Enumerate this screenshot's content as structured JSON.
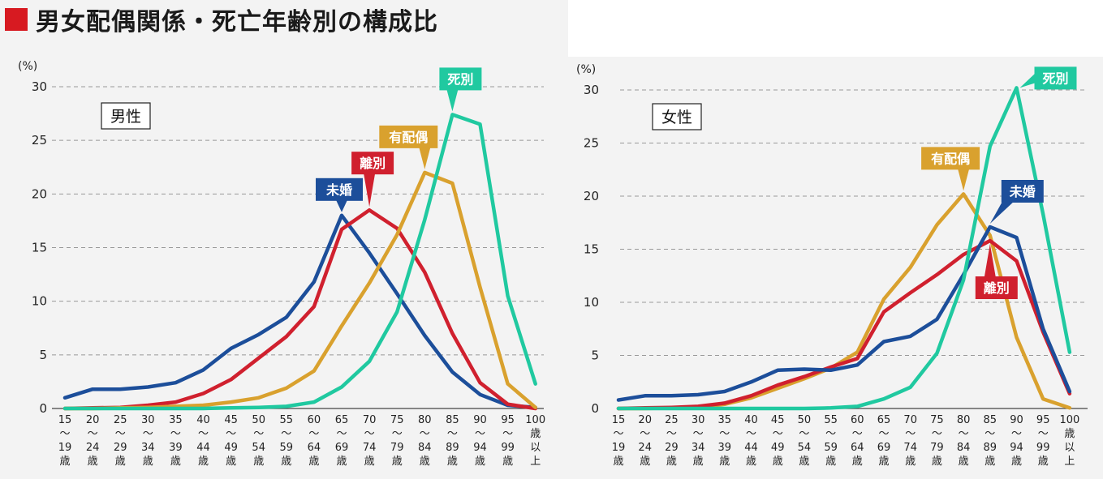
{
  "title": "男女配偶関係・死亡年齢別の構成比",
  "colors": {
    "title_square": "#d71a21",
    "unmarried": "#1c4e9a",
    "divorced": "#d0202e",
    "married": "#d9a12e",
    "widowed": "#20c9a0"
  },
  "chart_data": [
    {
      "type": "line",
      "panel_label": "男性",
      "unit": "(%)",
      "ylim": [
        0,
        30
      ],
      "yticks": [
        "0",
        "5",
        "10",
        "15",
        "20",
        "25",
        "30"
      ],
      "categories": [
        "15〜19歳",
        "20〜24歳",
        "25〜29歳",
        "30〜34歳",
        "35〜39歳",
        "40〜44歳",
        "45〜49歳",
        "50〜54歳",
        "55〜59歳",
        "60〜64歳",
        "65〜69歳",
        "70〜74歳",
        "75〜79歳",
        "80〜84歳",
        "85〜89歳",
        "90〜94歳",
        "95〜99歳",
        "100歳以上"
      ],
      "category_lines": [
        [
          "15",
          "〜",
          "19",
          "歳"
        ],
        [
          "20",
          "〜",
          "24",
          "歳"
        ],
        [
          "25",
          "〜",
          "29",
          "歳"
        ],
        [
          "30",
          "〜",
          "34",
          "歳"
        ],
        [
          "35",
          "〜",
          "39",
          "歳"
        ],
        [
          "40",
          "〜",
          "44",
          "歳"
        ],
        [
          "45",
          "〜",
          "49",
          "歳"
        ],
        [
          "50",
          "〜",
          "54",
          "歳"
        ],
        [
          "55",
          "〜",
          "59",
          "歳"
        ],
        [
          "60",
          "〜",
          "64",
          "歳"
        ],
        [
          "65",
          "〜",
          "69",
          "歳"
        ],
        [
          "70",
          "〜",
          "74",
          "歳"
        ],
        [
          "75",
          "〜",
          "79",
          "歳"
        ],
        [
          "80",
          "〜",
          "84",
          "歳"
        ],
        [
          "85",
          "〜",
          "89",
          "歳"
        ],
        [
          "90",
          "〜",
          "94",
          "歳"
        ],
        [
          "95",
          "〜",
          "99",
          "歳"
        ],
        [
          "100",
          "歳",
          "以",
          "上"
        ]
      ],
      "series": [
        {
          "name": "未婚",
          "key": "unmarried",
          "values": [
            1.0,
            1.8,
            1.8,
            2.0,
            2.4,
            3.6,
            5.6,
            6.9,
            8.5,
            11.8,
            18.0,
            14.5,
            10.7,
            6.8,
            3.4,
            1.3,
            0.3,
            0.1
          ],
          "label_at": 10
        },
        {
          "name": "離別",
          "key": "divorced",
          "values": [
            0.0,
            0.05,
            0.1,
            0.3,
            0.6,
            1.4,
            2.7,
            4.7,
            6.7,
            9.5,
            16.7,
            18.5,
            16.8,
            12.7,
            7.0,
            2.4,
            0.4,
            0.0
          ],
          "label_at": 11
        },
        {
          "name": "有配偶",
          "key": "married",
          "values": [
            0.0,
            0.0,
            0.05,
            0.1,
            0.2,
            0.3,
            0.6,
            1.0,
            1.9,
            3.5,
            7.7,
            11.7,
            16.2,
            22.0,
            21.0,
            11.3,
            2.3,
            0.1
          ],
          "label_at": 13
        },
        {
          "name": "死別",
          "key": "widowed",
          "values": [
            0.0,
            0.0,
            0.0,
            0.0,
            0.0,
            0.0,
            0.05,
            0.1,
            0.2,
            0.6,
            2.0,
            4.4,
            9.0,
            17.6,
            27.4,
            26.5,
            10.5,
            2.3
          ],
          "label_at": 14
        }
      ]
    },
    {
      "type": "line",
      "panel_label": "女性",
      "unit": "(%)",
      "ylim": [
        0,
        30
      ],
      "yticks": [
        "0",
        "5",
        "10",
        "15",
        "20",
        "25",
        "30"
      ],
      "categories": [
        "15〜19歳",
        "20〜24歳",
        "25〜29歳",
        "30〜34歳",
        "35〜39歳",
        "40〜44歳",
        "45〜49歳",
        "50〜54歳",
        "55〜59歳",
        "60〜64歳",
        "65〜69歳",
        "70〜74歳",
        "75〜79歳",
        "80〜84歳",
        "85〜89歳",
        "90〜94歳",
        "95〜99歳",
        "100歳以上"
      ],
      "category_lines": [
        [
          "15",
          "〜",
          "19",
          "歳"
        ],
        [
          "20",
          "〜",
          "24",
          "歳"
        ],
        [
          "25",
          "〜",
          "29",
          "歳"
        ],
        [
          "30",
          "〜",
          "34",
          "歳"
        ],
        [
          "35",
          "〜",
          "39",
          "歳"
        ],
        [
          "40",
          "〜",
          "44",
          "歳"
        ],
        [
          "45",
          "〜",
          "49",
          "歳"
        ],
        [
          "50",
          "〜",
          "54",
          "歳"
        ],
        [
          "55",
          "〜",
          "59",
          "歳"
        ],
        [
          "60",
          "〜",
          "64",
          "歳"
        ],
        [
          "65",
          "〜",
          "69",
          "歳"
        ],
        [
          "70",
          "〜",
          "74",
          "歳"
        ],
        [
          "75",
          "〜",
          "79",
          "歳"
        ],
        [
          "80",
          "〜",
          "84",
          "歳"
        ],
        [
          "85",
          "〜",
          "89",
          "歳"
        ],
        [
          "90",
          "〜",
          "94",
          "歳"
        ],
        [
          "95",
          "〜",
          "99",
          "歳"
        ],
        [
          "100",
          "歳",
          "以",
          "上"
        ]
      ],
      "series": [
        {
          "name": "有配偶",
          "key": "married",
          "values": [
            0.0,
            0.0,
            0.05,
            0.1,
            0.4,
            1.0,
            1.9,
            2.8,
            3.8,
            5.3,
            10.3,
            13.3,
            17.3,
            20.2,
            16.3,
            6.7,
            0.9,
            0.05
          ],
          "label_at": 13
        },
        {
          "name": "離別",
          "key": "divorced",
          "values": [
            0.0,
            0.05,
            0.1,
            0.2,
            0.5,
            1.2,
            2.2,
            3.0,
            3.9,
            4.7,
            9.1,
            10.9,
            12.6,
            14.5,
            15.8,
            13.9,
            7.2,
            1.4
          ],
          "label_at": 14
        },
        {
          "name": "未婚",
          "key": "unmarried",
          "values": [
            0.8,
            1.2,
            1.2,
            1.3,
            1.6,
            2.5,
            3.6,
            3.7,
            3.6,
            4.1,
            6.3,
            6.8,
            8.4,
            12.6,
            17.1,
            16.1,
            7.5,
            1.6
          ],
          "label_at": 14
        },
        {
          "name": "死別",
          "key": "widowed",
          "values": [
            0.0,
            0.0,
            0.0,
            0.0,
            0.0,
            0.0,
            0.0,
            0.0,
            0.05,
            0.2,
            0.9,
            2.0,
            5.2,
            12.1,
            24.7,
            30.2,
            18.3,
            5.3
          ],
          "label_at": 15
        }
      ]
    }
  ]
}
